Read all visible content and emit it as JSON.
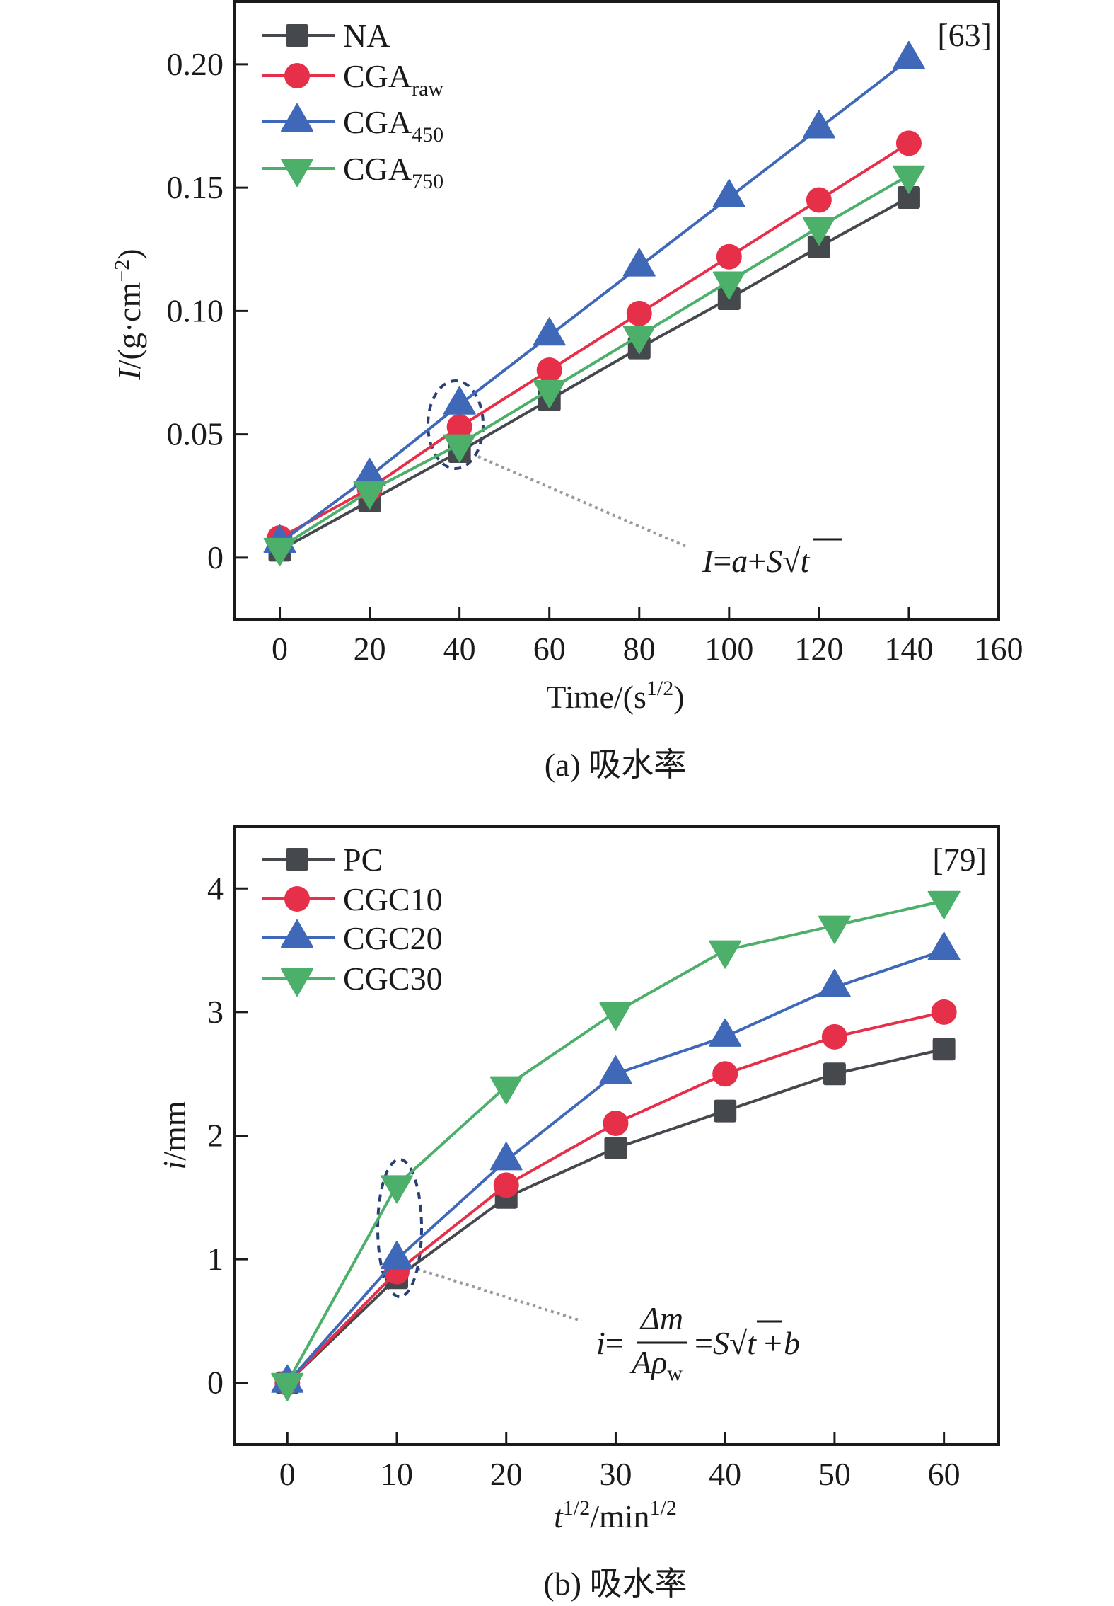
{
  "figure": {
    "panels": [
      "a",
      "b"
    ]
  },
  "colors": {
    "gray": "#45484d",
    "red": "#e6304a",
    "blue": "#3f68b8",
    "green": "#4caf6a",
    "axis": "#1a1a1a",
    "annotation_ellipse": "#2b3f77",
    "annotation_line": "#9a9a9a"
  },
  "chart_data": [
    {
      "type": "line",
      "panel": "a",
      "title": "",
      "caption": "(a) 吸水率",
      "reference": "[63]",
      "xlabel": "Time/(s",
      "xlabel_sup": "1/2",
      "xlabel_end": ")",
      "ylabel": "I/(g·cm",
      "ylabel_sup": "−2",
      "ylabel_end": ")",
      "xlim": [
        -10,
        160
      ],
      "ylim": [
        -0.025,
        0.2255
      ],
      "xticks": [
        0,
        20,
        40,
        60,
        80,
        100,
        120,
        140,
        160
      ],
      "xtick_labels": [
        "0",
        "20",
        "40",
        "60",
        "80",
        "100",
        "120",
        "140",
        "160"
      ],
      "yticks": [
        0,
        0.05,
        0.1,
        0.15,
        0.2
      ],
      "ytick_labels": [
        "0",
        "0.05",
        "0.10",
        "0.15",
        "0.20"
      ],
      "legend_position": "top-left",
      "grid": false,
      "x": [
        0,
        20,
        40,
        60,
        80,
        100,
        120,
        140
      ],
      "series": [
        {
          "name": "NA",
          "sub": "",
          "marker": "square",
          "color": "#45484d",
          "values": [
            0.003,
            0.023,
            0.043,
            0.064,
            0.085,
            0.105,
            0.126,
            0.146
          ]
        },
        {
          "name": "CGA",
          "sub": "raw",
          "marker": "circle",
          "color": "#e6304a",
          "values": [
            0.008,
            0.028,
            0.053,
            0.076,
            0.099,
            0.122,
            0.145,
            0.168
          ]
        },
        {
          "name": "CGA",
          "sub": "450",
          "marker": "triangle-up",
          "color": "#3f68b8",
          "values": [
            0.006,
            0.033,
            0.062,
            0.09,
            0.118,
            0.146,
            0.174,
            0.202
          ]
        },
        {
          "name": "CGA",
          "sub": "750",
          "marker": "triangle-down",
          "color": "#4caf6a",
          "values": [
            0.004,
            0.027,
            0.046,
            0.068,
            0.09,
            0.112,
            0.134,
            0.155
          ]
        }
      ],
      "annotation": {
        "highlight_x": 40,
        "equation": {
          "lhs": "I",
          "eq": "=",
          "a": "a",
          "plus": "+",
          "S": "S",
          "sqrt": "√",
          "t": "t"
        }
      }
    },
    {
      "type": "line",
      "panel": "b",
      "title": "",
      "caption": "(b) 吸水率",
      "reference": "[79]",
      "xlabel": "t",
      "xlabel_sup": "1/2",
      "xlabel_mid": "/min",
      "xlabel_sup2": "1/2",
      "ylabel": "i/mm",
      "xlim": [
        -4.8,
        65
      ],
      "ylim": [
        -0.5,
        4.5
      ],
      "xticks": [
        0,
        10,
        20,
        30,
        40,
        50,
        60
      ],
      "xtick_labels": [
        "0",
        "10",
        "20",
        "30",
        "40",
        "50",
        "60"
      ],
      "yticks": [
        0,
        1,
        2,
        3,
        4
      ],
      "ytick_labels": [
        "0",
        "1",
        "2",
        "3",
        "4"
      ],
      "legend_position": "top-left",
      "grid": false,
      "x": [
        0,
        10,
        20,
        30,
        40,
        50,
        60
      ],
      "series": [
        {
          "name": "PC",
          "sub": "",
          "marker": "square",
          "color": "#45484d",
          "values": [
            0,
            0.85,
            1.5,
            1.9,
            2.2,
            2.5,
            2.7
          ]
        },
        {
          "name": "CGC10",
          "sub": "",
          "marker": "circle",
          "color": "#e6304a",
          "values": [
            0,
            0.9,
            1.6,
            2.1,
            2.5,
            2.8,
            3.0
          ]
        },
        {
          "name": "CGC20",
          "sub": "",
          "marker": "triangle-up",
          "color": "#3f68b8",
          "values": [
            0,
            1.0,
            1.8,
            2.5,
            2.8,
            3.2,
            3.5
          ]
        },
        {
          "name": "CGC30",
          "sub": "",
          "marker": "triangle-down",
          "color": "#4caf6a",
          "values": [
            0,
            1.6,
            2.4,
            3.0,
            3.5,
            3.7,
            3.9
          ]
        }
      ],
      "annotation": {
        "highlight_x": 10,
        "equation": {
          "lhs": "i",
          "eq": "=",
          "num": "Δm",
          "den": "Aρ",
          "den_sub": "w",
          "eq2": "=",
          "S": "S",
          "sqrt": "√",
          "t": "t",
          "plus_b": "+b"
        }
      }
    }
  ]
}
